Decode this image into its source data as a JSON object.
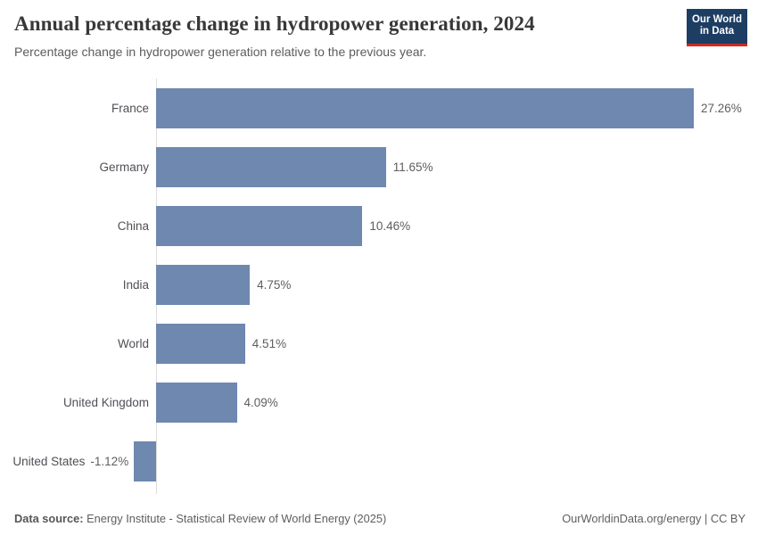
{
  "header": {
    "title": "Annual percentage change in hydropower generation, 2024",
    "subtitle": "Percentage change in hydropower generation relative to the previous year.",
    "logo": {
      "line1": "Our World",
      "line2": "in Data"
    }
  },
  "chart_data": {
    "type": "bar",
    "orientation": "horizontal",
    "title": "Annual percentage change in hydropower generation, 2024",
    "categories": [
      "France",
      "Germany",
      "China",
      "India",
      "World",
      "United Kingdom",
      "United States"
    ],
    "values": [
      27.26,
      11.65,
      10.46,
      4.75,
      4.51,
      4.09,
      -1.12
    ],
    "value_labels": [
      "27.26%",
      "11.65%",
      "10.46%",
      "4.75%",
      "4.51%",
      "4.09%",
      "-1.12%"
    ],
    "unit": "%",
    "xlim": [
      -1.12,
      27.26
    ],
    "grid": false,
    "legend": "none",
    "axis_tick_labels": "none",
    "sort_order": "descending"
  },
  "footer": {
    "datasource_label": "Data source:",
    "datasource_text": " Energy Institute - Statistical Review of World Energy (2025)",
    "right_text": "OurWorldinData.org/energy | CC BY"
  },
  "colors": {
    "bar": "#6e88b0",
    "axis_line": "#dcdcdc",
    "logo_bg": "#1d3d63",
    "logo_stripe": "#cc2a23",
    "title_text": "#383838",
    "label_text": "#4e5055",
    "value_text": "#5e5e5e"
  }
}
